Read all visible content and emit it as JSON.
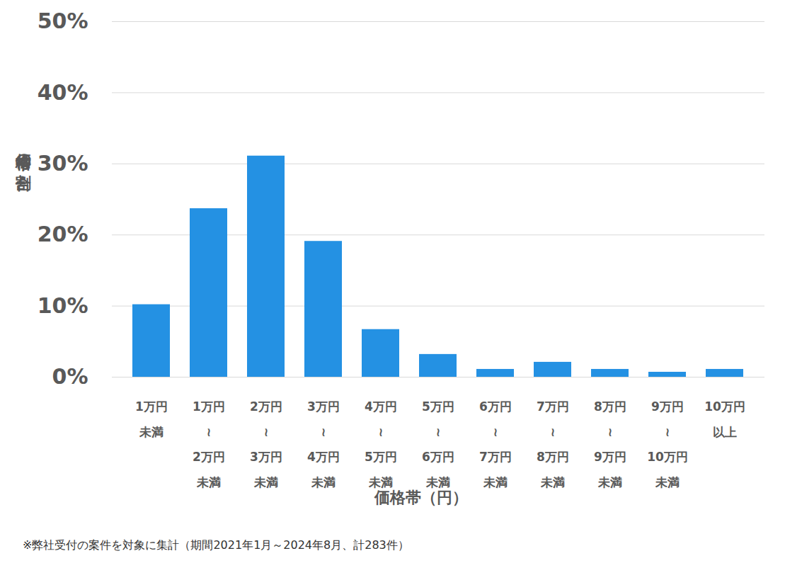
{
  "chart_data": {
    "type": "bar",
    "y_label": "価格帯の割合",
    "x_label": "価格帯（円）",
    "caption": "※弊社受付の案件を対象に集計（期間2021年1月～2024年8月、計283件）",
    "categories": [
      "1万円\n未満",
      "1万円\n≀\n2万円\n未満",
      "2万円\n≀\n3万円\n未満",
      "3万円\n≀\n4万円\n未満",
      "4万円\n≀\n5万円\n未満",
      "5万円\n≀\n6万円\n未満",
      "6万円\n≀\n7万円\n未満",
      "7万円\n≀\n8万円\n未満",
      "8万円\n≀\n9万円\n未満",
      "9万円\n≀\n10万円\n未満",
      "10万円\n以上"
    ],
    "values": [
      10.2,
      23.7,
      31.1,
      19.1,
      6.7,
      3.2,
      1.1,
      2.1,
      1.1,
      0.7,
      1.1
    ],
    "color": "#2491e3",
    "ylim": [
      0,
      50
    ],
    "yticks": [
      {
        "value": 0,
        "label": "0%"
      },
      {
        "value": 10,
        "label": "10%"
      },
      {
        "value": 20,
        "label": "20%"
      },
      {
        "value": 30,
        "label": "30%"
      },
      {
        "value": 40,
        "label": "40%"
      },
      {
        "value": 50,
        "label": "50%"
      }
    ],
    "grid": true
  }
}
